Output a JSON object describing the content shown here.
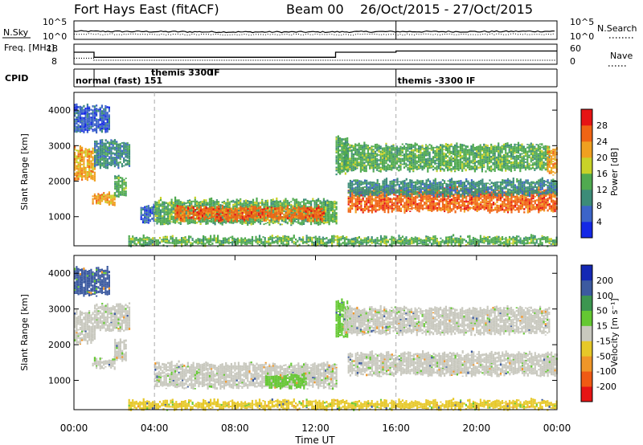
{
  "header": {
    "station": "Fort Hays East (fitACF)",
    "beam": "Beam 00",
    "dates": "26/Oct/2015 - 27/Oct/2015"
  },
  "colors": {
    "power_scale": [
      "#1428e6",
      "#3c64c8",
      "#3c8c78",
      "#50aa50",
      "#c8d228",
      "#f0a020",
      "#f06414",
      "#e61414"
    ],
    "velocity_scale": [
      "#1428b4",
      "#3c5aa0",
      "#3c9650",
      "#64c832",
      "#c8c8be",
      "#e6c828",
      "#f09628",
      "#f05a14",
      "#e61414"
    ]
  },
  "chart_data": [
    {
      "type": "line",
      "title": "",
      "ylabel": "N.Sky",
      "ylabel_right": "N.Search",
      "yticks_left": [
        "10^5",
        "10^0"
      ],
      "yticks_right": [
        "10^5",
        "10^0"
      ],
      "series": [
        {
          "name": "",
          "style": "solid",
          "x_hours": [
            0,
            4,
            8,
            12,
            16,
            20,
            24
          ],
          "values": [
            2.2,
            2.1,
            2.0,
            2.0,
            2.1,
            2.1,
            2.2
          ]
        },
        {
          "name": "",
          "style": "dotted",
          "x_hours": [
            0,
            4,
            8,
            12,
            16,
            20,
            24
          ],
          "values": [
            1.4,
            1.3,
            1.3,
            1.3,
            1.3,
            1.4,
            1.4
          ]
        }
      ]
    },
    {
      "type": "line",
      "title": "",
      "ylabel": "Freq. [MHz]",
      "ylabel_right": "Nave",
      "yticks_left": [
        "18",
        "8"
      ],
      "yticks_right": [
        "60",
        "0"
      ],
      "series": [
        {
          "name": "",
          "style": "solid",
          "x_hours": [
            0,
            1.0,
            1.0,
            13.0,
            13.0,
            16.0,
            16.0,
            24
          ],
          "values": [
            14,
            14,
            11.5,
            11.5,
            14,
            14,
            14.6,
            14.6
          ]
        },
        {
          "name": "",
          "style": "dotted",
          "x_hours": [
            0,
            1.0,
            1.0,
            24
          ],
          "values": [
            11,
            11,
            10,
            10
          ]
        }
      ]
    },
    {
      "type": "table",
      "title": "",
      "label": "CPID",
      "segments": [
        {
          "start_hour": 0,
          "end_hour": 1.0,
          "text": "normal (fast) 151"
        },
        {
          "start_hour": 1.0,
          "end_hour": 16.0,
          "text": "themis 3300 IF"
        },
        {
          "start_hour": 16.0,
          "end_hour": 24,
          "text": "themis -3300 IF"
        }
      ],
      "stacked_label": {
        "lower": "IF",
        "upper": "themis 3300"
      }
    },
    {
      "type": "heatmap",
      "title": "",
      "quantity": "power",
      "ylabel": "Slant Range [km]",
      "ylim": [
        180,
        4500
      ],
      "yticks": [
        1000,
        2000,
        3000,
        4000
      ],
      "xlim_hours": [
        0,
        24
      ],
      "colorbar_label": "Power [dB]",
      "colorbar_ticks": [
        "4",
        "8",
        "12",
        "16",
        "20",
        "24",
        "28"
      ],
      "bands": [
        {
          "t0": 0.0,
          "t1": 1.0,
          "r0": 2050,
          "r1": 2900,
          "level": 5
        },
        {
          "t0": 0.9,
          "t1": 2.0,
          "r0": 1350,
          "r1": 1600,
          "level": 5
        },
        {
          "t0": 2.0,
          "t1": 2.6,
          "r0": 1550,
          "r1": 2100,
          "level": 3
        },
        {
          "t0": 1.0,
          "t1": 2.8,
          "r0": 2400,
          "r1": 3100,
          "level": 2
        },
        {
          "t0": 0.0,
          "t1": 1.8,
          "r0": 3400,
          "r1": 4100,
          "level": 1
        },
        {
          "t0": 3.3,
          "t1": 4.0,
          "r0": 850,
          "r1": 1300,
          "level": 1
        },
        {
          "t0": 4.0,
          "t1": 13.0,
          "r0": 800,
          "r1": 1450,
          "level": 3
        },
        {
          "t0": 5.0,
          "t1": 12.4,
          "r0": 900,
          "r1": 1250,
          "level": 6
        },
        {
          "t0": 13.0,
          "t1": 13.6,
          "r0": 2200,
          "r1": 3200,
          "level": 3
        },
        {
          "t0": 13.6,
          "t1": 24.0,
          "r0": 1150,
          "r1": 1750,
          "level": 6
        },
        {
          "t0": 13.6,
          "t1": 24.0,
          "r0": 1600,
          "r1": 2000,
          "level": 2
        },
        {
          "t0": 13.4,
          "t1": 23.6,
          "r0": 2300,
          "r1": 3000,
          "level": 3
        },
        {
          "t0": 23.5,
          "t1": 24.0,
          "r0": 2200,
          "r1": 2900,
          "level": 5
        },
        {
          "t0": 2.7,
          "t1": 24.0,
          "r0": 200,
          "r1": 400,
          "level": 3
        }
      ]
    },
    {
      "type": "heatmap",
      "title": "",
      "quantity": "velocity",
      "ylabel": "Slant Range [km]",
      "ylim": [
        180,
        4500
      ],
      "yticks": [
        1000,
        2000,
        3000,
        4000
      ],
      "xlim_hours": [
        0,
        24
      ],
      "colorbar_label": "Velocity [m s⁻¹]",
      "colorbar_ticks": [
        "200",
        "100",
        "50",
        "15",
        "-15",
        "-50",
        "-100",
        "-200"
      ],
      "bands": [
        {
          "t0": 0.0,
          "t1": 1.0,
          "r0": 2050,
          "r1": 2900,
          "level": 4
        },
        {
          "t0": 0.9,
          "t1": 2.0,
          "r0": 1350,
          "r1": 1600,
          "level": 4
        },
        {
          "t0": 2.0,
          "t1": 2.6,
          "r0": 1550,
          "r1": 2100,
          "level": 4
        },
        {
          "t0": 1.0,
          "t1": 2.8,
          "r0": 2400,
          "r1": 3100,
          "level": 4
        },
        {
          "t0": 0.0,
          "t1": 1.8,
          "r0": 3400,
          "r1": 4100,
          "level": 1
        },
        {
          "t0": 4.0,
          "t1": 13.0,
          "r0": 800,
          "r1": 1450,
          "level": 4
        },
        {
          "t0": 9.5,
          "t1": 11.5,
          "r0": 800,
          "r1": 1100,
          "level": 3
        },
        {
          "t0": 13.0,
          "t1": 13.6,
          "r0": 2200,
          "r1": 3200,
          "level": 3
        },
        {
          "t0": 13.6,
          "t1": 24.0,
          "r0": 1150,
          "r1": 1750,
          "level": 4
        },
        {
          "t0": 13.4,
          "t1": 23.6,
          "r0": 2300,
          "r1": 3000,
          "level": 4
        },
        {
          "t0": 2.7,
          "t1": 24.0,
          "r0": 200,
          "r1": 400,
          "level": 5
        }
      ]
    }
  ],
  "x_axis": {
    "label": "Time UT",
    "ticks": [
      "00:00",
      "04:00",
      "08:00",
      "12:00",
      "16:00",
      "20:00",
      "00:00"
    ],
    "tick_hours": [
      0,
      4,
      8,
      12,
      16,
      20,
      24
    ],
    "dashed_hours": [
      4,
      16
    ]
  }
}
